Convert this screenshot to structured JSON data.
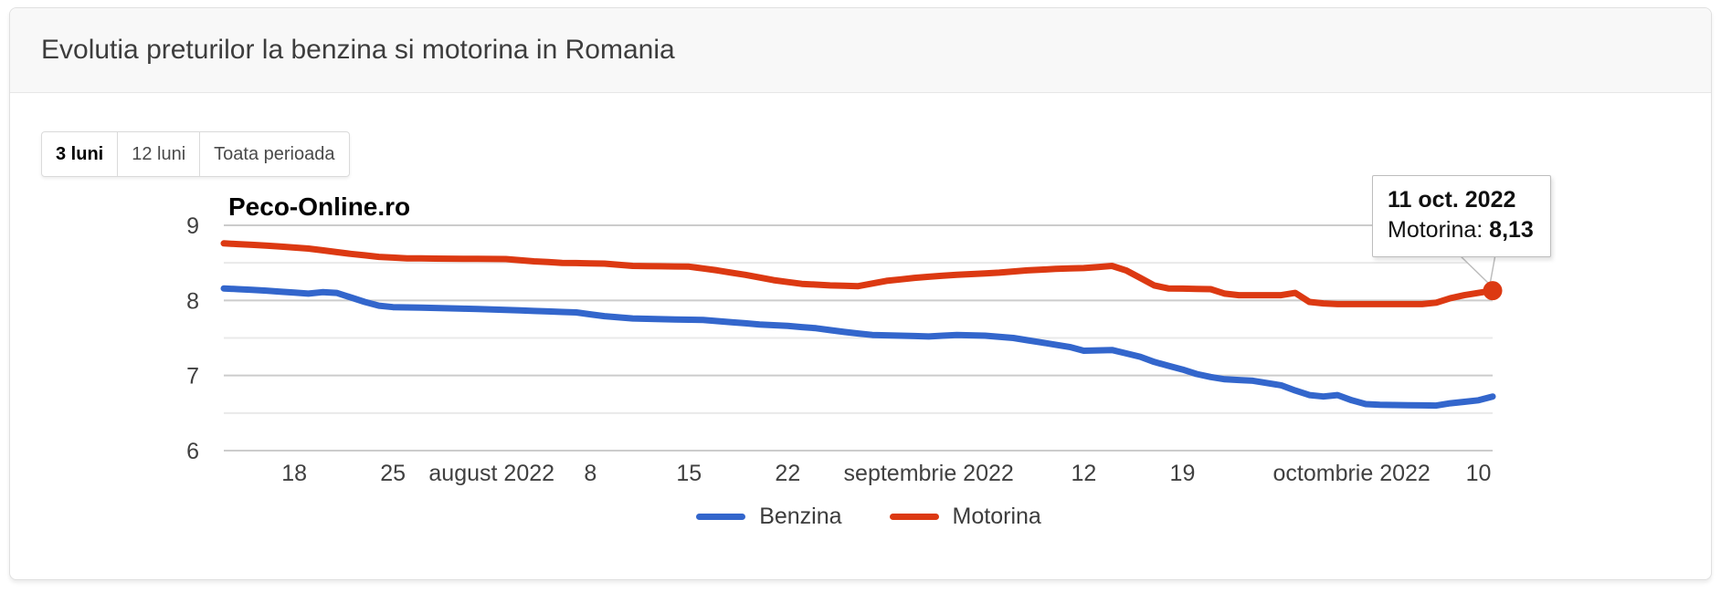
{
  "card": {
    "title": "Evolutia preturilor la benzina si motorina in Romania"
  },
  "range_buttons": [
    {
      "label": "3 luni",
      "active": true
    },
    {
      "label": "12 luni",
      "active": false
    },
    {
      "label": "Toata perioada",
      "active": false
    }
  ],
  "watermark": "Peco-Online.ro",
  "tooltip": {
    "date_label": "11 oct. 2022",
    "series_label": "Motorina: ",
    "value": "8,13"
  },
  "colors": {
    "benzina": "#3366CC",
    "motorina": "#DC3912",
    "grid_major": "#cccccc",
    "grid_minor": "#e9e9e9",
    "axis_text": "#404040",
    "highlight_dot": "#DC3912"
  },
  "chart_data": {
    "type": "line",
    "title": "Evolutia preturilor la benzina si motorina in Romania",
    "xlabel": "",
    "ylabel": "",
    "x_start": "2022-07-13",
    "x_end": "2022-10-11",
    "ylim": [
      6,
      9
    ],
    "y_ticks": [
      9,
      8,
      7,
      6
    ],
    "y_minor_ticks": [
      8.5,
      7.5,
      6.5
    ],
    "grid": true,
    "legend_position": "bottom",
    "x_ticks": [
      {
        "date": "2022-07-18",
        "label": "18"
      },
      {
        "date": "2022-07-25",
        "label": "25"
      },
      {
        "date": "2022-08-01",
        "label": "august 2022"
      },
      {
        "date": "2022-08-08",
        "label": "8"
      },
      {
        "date": "2022-08-15",
        "label": "15"
      },
      {
        "date": "2022-08-22",
        "label": "22"
      },
      {
        "date": "2022-09-01",
        "label": "septembrie 2022"
      },
      {
        "date": "2022-09-12",
        "label": "12"
      },
      {
        "date": "2022-09-19",
        "label": "19"
      },
      {
        "date": "2022-10-01",
        "label": "octombrie 2022"
      },
      {
        "date": "2022-10-10",
        "label": "10"
      }
    ],
    "series": [
      {
        "name": "Benzina",
        "color": "#3366CC",
        "points": [
          [
            "2022-07-13",
            8.16
          ],
          [
            "2022-07-16",
            8.13
          ],
          [
            "2022-07-19",
            8.09
          ],
          [
            "2022-07-20",
            8.11
          ],
          [
            "2022-07-21",
            8.1
          ],
          [
            "2022-07-23",
            7.98
          ],
          [
            "2022-07-24",
            7.93
          ],
          [
            "2022-07-25",
            7.91
          ],
          [
            "2022-07-28",
            7.9
          ],
          [
            "2022-08-01",
            7.88
          ],
          [
            "2022-08-04",
            7.86
          ],
          [
            "2022-08-07",
            7.84
          ],
          [
            "2022-08-09",
            7.79
          ],
          [
            "2022-08-11",
            7.76
          ],
          [
            "2022-08-13",
            7.75
          ],
          [
            "2022-08-16",
            7.74
          ],
          [
            "2022-08-18",
            7.71
          ],
          [
            "2022-08-20",
            7.68
          ],
          [
            "2022-08-22",
            7.66
          ],
          [
            "2022-08-24",
            7.63
          ],
          [
            "2022-08-26",
            7.58
          ],
          [
            "2022-08-28",
            7.54
          ],
          [
            "2022-09-01",
            7.52
          ],
          [
            "2022-09-03",
            7.54
          ],
          [
            "2022-09-05",
            7.53
          ],
          [
            "2022-09-07",
            7.5
          ],
          [
            "2022-09-09",
            7.44
          ],
          [
            "2022-09-11",
            7.38
          ],
          [
            "2022-09-12",
            7.33
          ],
          [
            "2022-09-14",
            7.34
          ],
          [
            "2022-09-16",
            7.25
          ],
          [
            "2022-09-17",
            7.18
          ],
          [
            "2022-09-19",
            7.08
          ],
          [
            "2022-09-20",
            7.02
          ],
          [
            "2022-09-21",
            6.98
          ],
          [
            "2022-09-22",
            6.95
          ],
          [
            "2022-09-24",
            6.93
          ],
          [
            "2022-09-26",
            6.87
          ],
          [
            "2022-09-27",
            6.8
          ],
          [
            "2022-09-28",
            6.74
          ],
          [
            "2022-09-29",
            6.72
          ],
          [
            "2022-09-30",
            6.74
          ],
          [
            "2022-10-01",
            6.67
          ],
          [
            "2022-10-02",
            6.62
          ],
          [
            "2022-10-03",
            6.61
          ],
          [
            "2022-10-07",
            6.6
          ],
          [
            "2022-10-08",
            6.63
          ],
          [
            "2022-10-09",
            6.65
          ],
          [
            "2022-10-10",
            6.67
          ],
          [
            "2022-10-11",
            6.72
          ]
        ]
      },
      {
        "name": "Motorina",
        "color": "#DC3912",
        "points": [
          [
            "2022-07-13",
            8.76
          ],
          [
            "2022-07-16",
            8.73
          ],
          [
            "2022-07-19",
            8.69
          ],
          [
            "2022-07-22",
            8.62
          ],
          [
            "2022-07-24",
            8.58
          ],
          [
            "2022-07-26",
            8.56
          ],
          [
            "2022-08-02",
            8.55
          ],
          [
            "2022-08-04",
            8.52
          ],
          [
            "2022-08-06",
            8.5
          ],
          [
            "2022-08-09",
            8.49
          ],
          [
            "2022-08-11",
            8.46
          ],
          [
            "2022-08-15",
            8.45
          ],
          [
            "2022-08-17",
            8.4
          ],
          [
            "2022-08-19",
            8.34
          ],
          [
            "2022-08-21",
            8.27
          ],
          [
            "2022-08-23",
            8.22
          ],
          [
            "2022-08-25",
            8.2
          ],
          [
            "2022-08-27",
            8.19
          ],
          [
            "2022-08-29",
            8.26
          ],
          [
            "2022-08-31",
            8.3
          ],
          [
            "2022-09-02",
            8.33
          ],
          [
            "2022-09-04",
            8.35
          ],
          [
            "2022-09-06",
            8.37
          ],
          [
            "2022-09-08",
            8.4
          ],
          [
            "2022-09-10",
            8.42
          ],
          [
            "2022-09-12",
            8.43
          ],
          [
            "2022-09-14",
            8.46
          ],
          [
            "2022-09-15",
            8.4
          ],
          [
            "2022-09-16",
            8.3
          ],
          [
            "2022-09-17",
            8.2
          ],
          [
            "2022-09-18",
            8.16
          ],
          [
            "2022-09-21",
            8.15
          ],
          [
            "2022-09-22",
            8.09
          ],
          [
            "2022-09-23",
            8.07
          ],
          [
            "2022-09-26",
            8.07
          ],
          [
            "2022-09-27",
            8.1
          ],
          [
            "2022-09-28",
            7.98
          ],
          [
            "2022-09-29",
            7.96
          ],
          [
            "2022-09-30",
            7.95
          ],
          [
            "2022-10-06",
            7.95
          ],
          [
            "2022-10-07",
            7.97
          ],
          [
            "2022-10-08",
            8.03
          ],
          [
            "2022-10-09",
            8.07
          ],
          [
            "2022-10-10",
            8.1
          ],
          [
            "2022-10-11",
            8.13
          ]
        ]
      }
    ],
    "highlight": {
      "series": "Motorina",
      "date": "2022-10-11",
      "value": 8.13
    }
  }
}
